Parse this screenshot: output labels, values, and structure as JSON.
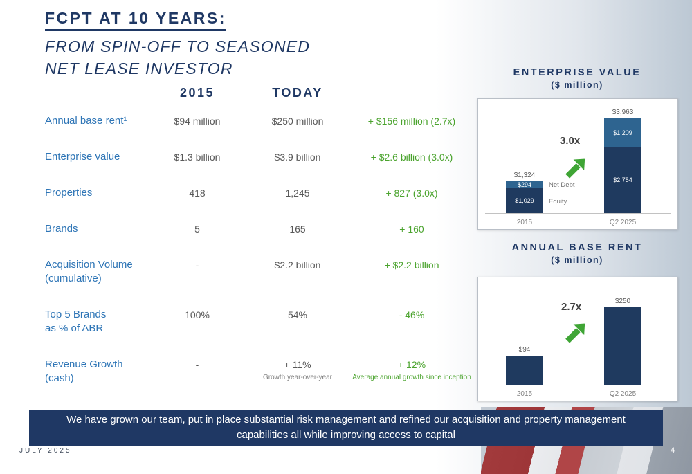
{
  "slide": {
    "title": "FCPT AT 10 YEARS:",
    "subtitle_line1": "FROM SPIN-OFF TO SEASONED",
    "subtitle_line2": "NET LEASE INVESTOR",
    "banner": "We have grown our team, put in place substantial risk management and refined our acquisition and property management capabilities all while improving access to capital",
    "footer_date": "JULY 2025",
    "page_number": "4"
  },
  "colors": {
    "navy": "#1F3864",
    "label_blue": "#2E75B6",
    "green": "#4AA32D",
    "bar_dark": "#1F3A5F",
    "bar_light": "#2E6490"
  },
  "comparison_table": {
    "headers": {
      "col_2015": "2015",
      "col_today": "TODAY"
    },
    "rows": [
      {
        "label": "Annual base rent¹",
        "label2": "",
        "y2015": "$94 million",
        "today": "$250 million",
        "change": "+ $156 million (2.7x)"
      },
      {
        "label": "Enterprise value",
        "label2": "",
        "y2015": "$1.3 billion",
        "today": "$3.9 billion",
        "change": "+ $2.6 billion (3.0x)"
      },
      {
        "label": "Properties",
        "label2": "",
        "y2015": "418",
        "today": "1,245",
        "change": "+ 827  (3.0x)"
      },
      {
        "label": "Brands",
        "label2": "",
        "y2015": "5",
        "today": "165",
        "change": "+ 160"
      },
      {
        "label": "Acquisition Volume",
        "label2": "(cumulative)",
        "y2015": "-",
        "today": "$2.2 billion",
        "change": "+ $2.2 billion"
      },
      {
        "label": "Top 5 Brands",
        "label2": "as % of ABR",
        "y2015": "100%",
        "today": "54%",
        "change": "- 46%"
      },
      {
        "label": "Revenue Growth",
        "label2": "(cash)",
        "y2015": "-",
        "today": "+ 11%",
        "today_note": "Growth year-over-year",
        "change": "+ 12%",
        "change_note": "Average annual growth since inception"
      }
    ]
  },
  "chart_data": [
    {
      "type": "bar",
      "stacked": true,
      "title": "ENTERPRISE VALUE",
      "subtitle": "($ million)",
      "categories": [
        "2015",
        "Q2 2025"
      ],
      "series": [
        {
          "name": "Equity",
          "values": [
            1029,
            2754
          ]
        },
        {
          "name": "Net Debt",
          "values": [
            294,
            1209
          ]
        }
      ],
      "totals": [
        1324,
        3963
      ],
      "total_labels": [
        "$1,324",
        "$3,963"
      ],
      "segment_labels": {
        "equity": [
          "$1,029",
          "$2,754"
        ],
        "net_debt": [
          "$294",
          "$1,209"
        ]
      },
      "legend": [
        "Net Debt",
        "Equity"
      ],
      "growth_label": "3.0x",
      "ylim": [
        0,
        4100
      ],
      "legend_position": "beside-first-bar",
      "grid": false
    },
    {
      "type": "bar",
      "stacked": false,
      "title": "ANNUAL BASE RENT",
      "subtitle": "($ million)",
      "categories": [
        "2015",
        "Q2 2025"
      ],
      "values": [
        94,
        250
      ],
      "value_labels": [
        "$94",
        "$250"
      ],
      "growth_label": "2.7x",
      "ylim": [
        0,
        280
      ],
      "grid": false
    }
  ]
}
